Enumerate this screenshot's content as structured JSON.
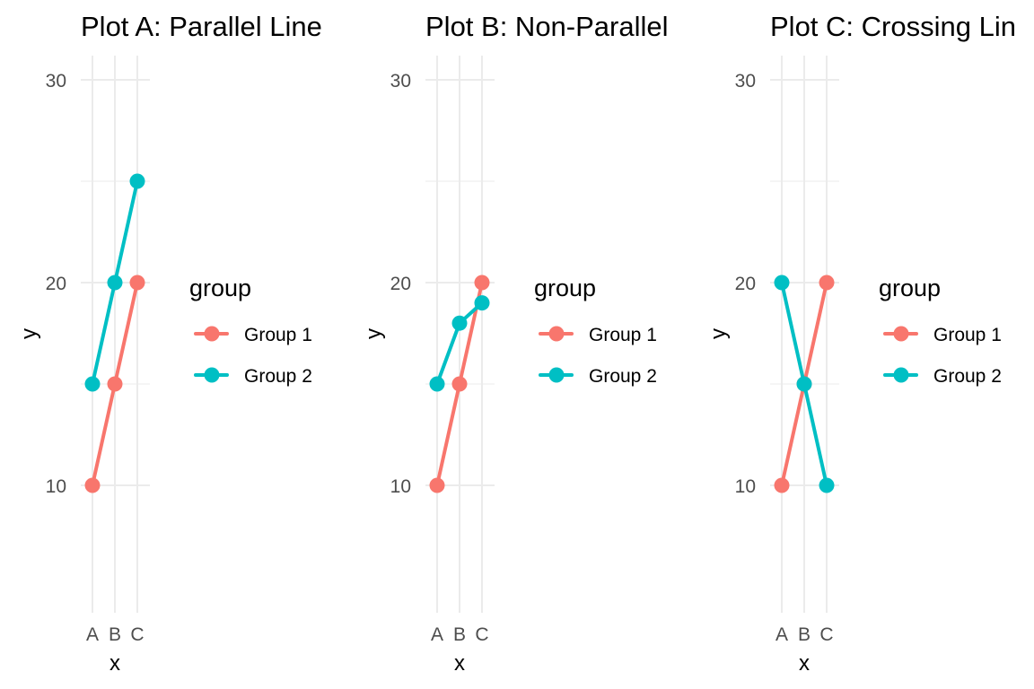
{
  "colors": {
    "group_1": "#F8766D",
    "group_2": "#00BFC4",
    "grid": "#EBEBEB",
    "tick_text": "#4D4D4D",
    "text": "#000000"
  },
  "chart_data": [
    {
      "type": "line",
      "title": "Plot A: Parallel Line",
      "xlabel": "x",
      "ylabel": "y",
      "categories": [
        "A",
        "B",
        "C"
      ],
      "ylim": [
        5,
        31
      ],
      "yticks": [
        10,
        20,
        30
      ],
      "grid": true,
      "legend": {
        "title": "group",
        "placement": "right"
      },
      "series": [
        {
          "name": "Group 1",
          "values": [
            10,
            15,
            20
          ]
        },
        {
          "name": "Group 2",
          "values": [
            15,
            20,
            25
          ]
        }
      ]
    },
    {
      "type": "line",
      "title": "Plot B: Non-Parallel",
      "xlabel": "x",
      "ylabel": "y",
      "categories": [
        "A",
        "B",
        "C"
      ],
      "ylim": [
        5,
        31
      ],
      "yticks": [
        10,
        20,
        30
      ],
      "grid": true,
      "legend": {
        "title": "group",
        "placement": "right"
      },
      "series": [
        {
          "name": "Group 1",
          "values": [
            10,
            15,
            20
          ]
        },
        {
          "name": "Group 2",
          "values": [
            15,
            18,
            19
          ]
        }
      ]
    },
    {
      "type": "line",
      "title": "Plot C: Crossing Lin",
      "xlabel": "x",
      "ylabel": "y",
      "categories": [
        "A",
        "B",
        "C"
      ],
      "ylim": [
        5,
        31
      ],
      "yticks": [
        10,
        20,
        30
      ],
      "grid": true,
      "legend": {
        "title": "group",
        "placement": "right"
      },
      "series": [
        {
          "name": "Group 1",
          "values": [
            10,
            15,
            20
          ]
        },
        {
          "name": "Group 2",
          "values": [
            20,
            15,
            10
          ]
        }
      ]
    }
  ]
}
